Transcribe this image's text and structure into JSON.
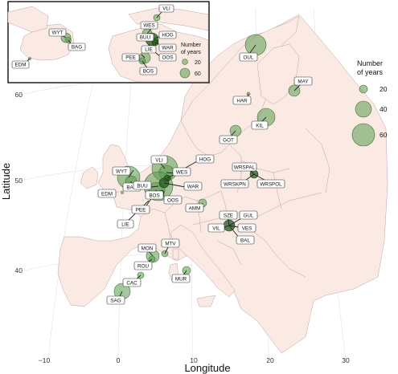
{
  "axes": {
    "xlabel": "Longitude",
    "ylabel": "Latitude",
    "x_ticks": [
      "−10",
      "0",
      "10",
      "20",
      "30"
    ],
    "y_ticks": [
      "40",
      "50",
      "60"
    ]
  },
  "legend": {
    "title_line1": "Number",
    "title_line2": "of years",
    "values": [
      "20",
      "40",
      "60"
    ]
  },
  "inset_legend": {
    "title_line1": "Number",
    "title_line2": "of years",
    "values": [
      "20",
      "60"
    ]
  },
  "site_labels": {
    "VLI": "VLI",
    "HOG": "HOG",
    "WES": "WES",
    "WAR": "WAR",
    "OOS": "OOS",
    "BUU": "BUU",
    "BOS": "BOS",
    "PEE": "PEE",
    "LIE": "LIE",
    "WYT": "WYT",
    "BAG": "BAG",
    "EDM": "EDM",
    "OUL": "OUL",
    "MAY": "MAY",
    "HAR": "HAR",
    "KIL": "KIL",
    "GOT": "GOT",
    "WRSPAL": "WRSPAL",
    "WRSKPN": "WRSKPN",
    "WRSPOL": "WRSPOL",
    "SZE": "SZE",
    "GUL": "GUL",
    "VIL": "VIL",
    "VES": "VES",
    "BAL": "BAL",
    "AMM": "AMM",
    "MON": "MON",
    "MTV": "MTV",
    "ROU": "ROU",
    "CAC": "CAC",
    "SAG": "SAG",
    "MUR": "MUR"
  },
  "inset_labels": {
    "VLI": "VLI",
    "WES": "WES",
    "WYT": "WYT",
    "BAG": "BAG",
    "BUU": "BUU",
    "HOG": "HOG",
    "WAR": "WAR",
    "LIE": "LIE",
    "PEE": "PEE",
    "OOS": "OOS",
    "BOS": "BOS",
    "EDM": "EDM"
  },
  "colors": {
    "land": "#fbeae4",
    "circle_fill": "#5a9a4e",
    "circle_dark": "#1f5a1c",
    "border": "#b9a5a0"
  }
}
